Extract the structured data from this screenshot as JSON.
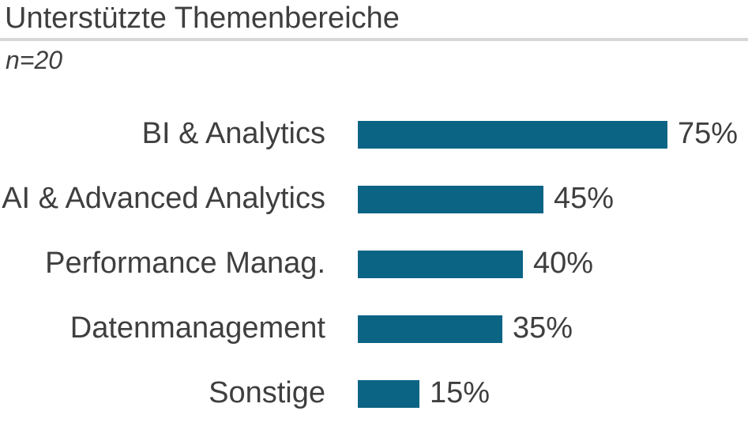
{
  "figure": {
    "title": "Unterstützte Themenbereiche",
    "sample_note": "n=20"
  },
  "chart_data": {
    "type": "bar",
    "orientation": "horizontal",
    "title": "Unterstützte Themenbereiche",
    "annotation": "n=20",
    "categories": [
      "BI & Analytics",
      "AI & Advanced Analytics",
      "Performance Manag.",
      "Datenmanagement",
      "Sonstige"
    ],
    "values": [
      75,
      45,
      40,
      35,
      15
    ],
    "value_labels": [
      "75%",
      "45%",
      "40%",
      "35%",
      "15%"
    ],
    "value_suffix": "%",
    "xlim": [
      0,
      100
    ],
    "grid": false,
    "legend": false,
    "colors": {
      "bar": "#0c6485",
      "text": "#3f3f3f",
      "divider": "#d7d7d7",
      "background": "#ffffff"
    }
  }
}
